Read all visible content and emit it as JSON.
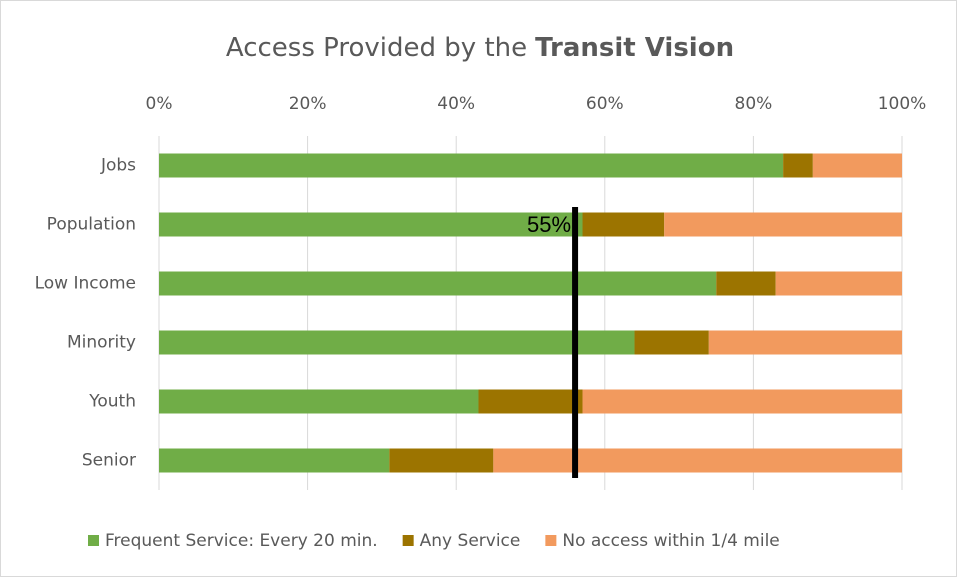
{
  "chart_data": {
    "type": "stacked_barh",
    "title": "Access Provided by the",
    "title_emphasis": "Transit Vision",
    "categories": [
      "Jobs",
      "Population",
      "Low Income",
      "Minority",
      "Youth",
      "Senior"
    ],
    "series": [
      {
        "name": "Frequent Service: Every 20 min.",
        "color": "#70ad47",
        "values": [
          84,
          57,
          75,
          64,
          43,
          31
        ]
      },
      {
        "name": "Any Service",
        "color": "#9c7400",
        "values": [
          4,
          11,
          8,
          10,
          14,
          14
        ]
      },
      {
        "name": "No access within 1/4 mile",
        "color": "#f29a5e",
        "values": [
          12,
          32,
          17,
          26,
          43,
          55
        ]
      }
    ],
    "xlim": [
      0,
      100
    ],
    "xticks": [
      {
        "value": 0,
        "label": "0%"
      },
      {
        "value": 20,
        "label": "20%"
      },
      {
        "value": 40,
        "label": "40%"
      },
      {
        "value": 60,
        "label": "60%"
      },
      {
        "value": 80,
        "label": "80%"
      },
      {
        "value": 100,
        "label": "100%"
      }
    ],
    "grid": true,
    "legend": "bottom",
    "annotation": {
      "text": "55%",
      "value": 56
    }
  }
}
